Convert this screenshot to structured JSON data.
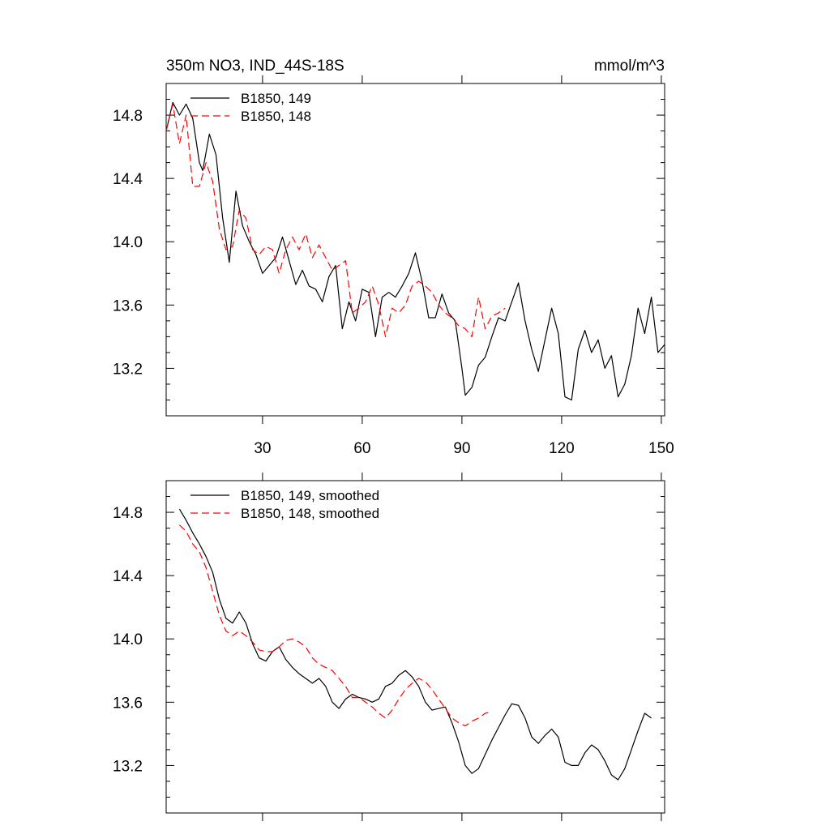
{
  "chart_data": [
    {
      "type": "line",
      "title": "350m NO3, IND_44S-18S",
      "units": "mmol/m^3",
      "xlim": [
        1,
        151
      ],
      "ylim": [
        12.9,
        15.0
      ],
      "xticks": [
        30,
        60,
        90,
        120,
        150
      ],
      "yticks": [
        13.2,
        13.6,
        14.0,
        14.4,
        14.8
      ],
      "legend_position": "top-left",
      "series": [
        {
          "name": "B1850, 149",
          "color": "#000000",
          "dash": "solid",
          "x": [
            1,
            3,
            5,
            7,
            9,
            11,
            12,
            14,
            16,
            18,
            20,
            22,
            24,
            26,
            28,
            30,
            32,
            34,
            36,
            38,
            40,
            42,
            44,
            46,
            48,
            50,
            52,
            54,
            56,
            58,
            60,
            62,
            64,
            66,
            68,
            70,
            72,
            74,
            76,
            78,
            80,
            82,
            84,
            86,
            88,
            90,
            91,
            93,
            95,
            97,
            99,
            101,
            103,
            105,
            107,
            109,
            111,
            113,
            115,
            117,
            119,
            121,
            123,
            125,
            127,
            129,
            131,
            133,
            135,
            137,
            139,
            141,
            143,
            145,
            147,
            149,
            151
          ],
          "y": [
            14.7,
            14.88,
            14.8,
            14.87,
            14.78,
            14.5,
            14.45,
            14.68,
            14.55,
            14.15,
            13.87,
            14.32,
            14.1,
            14.0,
            13.92,
            13.8,
            13.85,
            13.9,
            14.03,
            13.88,
            13.73,
            13.82,
            13.72,
            13.7,
            13.62,
            13.78,
            13.85,
            13.45,
            13.62,
            13.5,
            13.7,
            13.68,
            13.4,
            13.65,
            13.68,
            13.65,
            13.72,
            13.8,
            13.93,
            13.75,
            13.52,
            13.52,
            13.67,
            13.55,
            13.5,
            13.2,
            13.03,
            13.08,
            13.22,
            13.27,
            13.4,
            13.52,
            13.5,
            13.62,
            13.74,
            13.5,
            13.32,
            13.18,
            13.38,
            13.58,
            13.42,
            13.02,
            13.0,
            13.32,
            13.44,
            13.3,
            13.38,
            13.2,
            13.28,
            13.02,
            13.1,
            13.28,
            13.58,
            13.42,
            13.65,
            13.3,
            13.35
          ]
        },
        {
          "name": "B1850, 148",
          "color": "#ff0000",
          "dash": "dashed",
          "x": [
            1,
            3,
            5,
            7,
            9,
            11,
            13,
            15,
            17,
            19,
            21,
            23,
            25,
            27,
            29,
            31,
            33,
            35,
            37,
            39,
            41,
            43,
            45,
            47,
            49,
            51,
            53,
            55,
            57,
            59,
            61,
            63,
            65,
            67,
            69,
            71,
            73,
            75,
            77,
            79,
            81,
            83,
            85,
            87,
            89,
            91,
            93,
            95,
            97,
            99,
            101,
            103
          ],
          "y": [
            14.7,
            14.87,
            14.62,
            14.8,
            14.35,
            14.35,
            14.5,
            14.38,
            14.08,
            13.95,
            13.97,
            14.2,
            14.15,
            13.95,
            13.92,
            13.97,
            13.95,
            13.8,
            13.95,
            14.03,
            13.95,
            14.05,
            13.9,
            13.98,
            13.9,
            13.82,
            13.85,
            13.88,
            13.55,
            13.58,
            13.62,
            13.72,
            13.6,
            13.4,
            13.58,
            13.55,
            13.6,
            13.72,
            13.75,
            13.72,
            13.68,
            13.6,
            13.55,
            13.52,
            13.47,
            13.45,
            13.4,
            13.65,
            13.45,
            13.53,
            13.55,
            13.58
          ]
        }
      ]
    },
    {
      "type": "line",
      "title": "",
      "xlim": [
        1,
        151
      ],
      "ylim": [
        12.9,
        15.0
      ],
      "yticks": [
        13.2,
        13.6,
        14.0,
        14.4,
        14.8
      ],
      "legend_position": "top-left",
      "series": [
        {
          "name": "B1850, 149, smoothed",
          "color": "#000000",
          "dash": "solid",
          "x": [
            5,
            7,
            9,
            11,
            13,
            15,
            17,
            19,
            21,
            23,
            25,
            27,
            29,
            31,
            33,
            35,
            37,
            39,
            41,
            43,
            45,
            47,
            49,
            51,
            53,
            55,
            57,
            59,
            61,
            63,
            65,
            67,
            69,
            71,
            73,
            75,
            77,
            79,
            81,
            83,
            85,
            87,
            89,
            91,
            93,
            95,
            97,
            99,
            101,
            103,
            105,
            107,
            109,
            111,
            113,
            115,
            117,
            119,
            121,
            123,
            125,
            127,
            129,
            131,
            133,
            135,
            137,
            139,
            141,
            143,
            145,
            147
          ],
          "y": [
            14.82,
            14.75,
            14.67,
            14.6,
            14.52,
            14.42,
            14.25,
            14.13,
            14.1,
            14.17,
            14.1,
            13.97,
            13.88,
            13.86,
            13.92,
            13.95,
            13.87,
            13.82,
            13.78,
            13.75,
            13.72,
            13.75,
            13.7,
            13.6,
            13.56,
            13.62,
            13.65,
            13.63,
            13.62,
            13.6,
            13.62,
            13.7,
            13.72,
            13.77,
            13.8,
            13.76,
            13.7,
            13.6,
            13.55,
            13.56,
            13.57,
            13.47,
            13.35,
            13.2,
            13.15,
            13.18,
            13.27,
            13.36,
            13.44,
            13.52,
            13.59,
            13.58,
            13.5,
            13.38,
            13.34,
            13.39,
            13.43,
            13.38,
            13.22,
            13.2,
            13.2,
            13.28,
            13.33,
            13.3,
            13.23,
            13.14,
            13.11,
            13.18,
            13.3,
            13.42,
            13.53,
            13.5
          ]
        },
        {
          "name": "B1850, 148, smoothed",
          "color": "#ff0000",
          "dash": "dashed",
          "x": [
            5,
            7,
            9,
            11,
            13,
            15,
            17,
            19,
            21,
            23,
            25,
            27,
            29,
            31,
            33,
            35,
            37,
            39,
            41,
            43,
            45,
            47,
            49,
            51,
            53,
            55,
            57,
            59,
            61,
            63,
            65,
            67,
            69,
            71,
            73,
            75,
            77,
            79,
            81,
            83,
            85,
            87,
            89,
            91,
            93,
            95,
            97,
            99
          ],
          "y": [
            14.72,
            14.68,
            14.6,
            14.55,
            14.45,
            14.3,
            14.15,
            14.05,
            14.02,
            14.05,
            14.02,
            13.98,
            13.93,
            13.92,
            13.92,
            13.95,
            13.99,
            14.0,
            13.98,
            13.95,
            13.88,
            13.84,
            13.82,
            13.8,
            13.75,
            13.7,
            13.63,
            13.63,
            13.6,
            13.57,
            13.53,
            13.5,
            13.55,
            13.62,
            13.68,
            13.72,
            13.75,
            13.73,
            13.68,
            13.62,
            13.56,
            13.5,
            13.47,
            13.45,
            13.48,
            13.5,
            13.53,
            13.54
          ]
        }
      ]
    }
  ]
}
